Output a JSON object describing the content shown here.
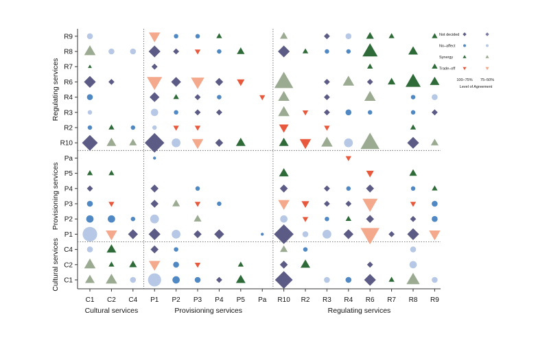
{
  "chart_data": {
    "type": "scatter",
    "x_categories": [
      "C1",
      "C2",
      "C4",
      "P1",
      "P2",
      "P3",
      "P4",
      "P5",
      "Pa",
      "R10",
      "R2",
      "R3",
      "R4",
      "R6",
      "R7",
      "R8",
      "R9"
    ],
    "y_categories": [
      "C1",
      "C2",
      "C4",
      "P1",
      "P2",
      "P3",
      "P4",
      "P5",
      "Pa",
      "R10",
      "R2",
      "R3",
      "R4",
      "R6",
      "R7",
      "R8",
      "R9"
    ],
    "x_groups": [
      {
        "label": "Cultural services",
        "items": [
          "C1",
          "C2",
          "C4"
        ]
      },
      {
        "label": "Provisioning services",
        "items": [
          "P1",
          "P2",
          "P3",
          "P4",
          "P5",
          "Pa"
        ]
      },
      {
        "label": "Regulating services",
        "items": [
          "R10",
          "R2",
          "R3",
          "R4",
          "R6",
          "R7",
          "R8",
          "R9"
        ]
      }
    ],
    "y_groups": [
      {
        "label": "Cultural services",
        "items": [
          "C1",
          "C2",
          "C4"
        ]
      },
      {
        "label": "Provisioning services",
        "items": [
          "P1",
          "P2",
          "P3",
          "P4",
          "P5",
          "Pa"
        ]
      },
      {
        "label": "Regulating services",
        "items": [
          "R10",
          "R2",
          "R3",
          "R4",
          "R6",
          "R7",
          "R8",
          "R9"
        ]
      }
    ],
    "legend": {
      "title": "Level of Agreement",
      "levels": [
        "100–75%",
        "75–50%"
      ],
      "categories": [
        {
          "name": "Not decided",
          "code": "N",
          "shape": "diamond"
        },
        {
          "name": "No–affect",
          "code": "O",
          "shape": "circle"
        },
        {
          "name": "Synergy",
          "code": "S",
          "shape": "triangle-up"
        },
        {
          "name": "Trade–off",
          "code": "T",
          "shape": "triangle-down"
        }
      ]
    },
    "colors": {
      "N_high": "#5b5b86",
      "N_low": "#7a7aa3",
      "O_high": "#5088c4",
      "O_low": "#b6c8e6",
      "S_high": "#2e6b38",
      "S_low": "#9bab92",
      "T_high": "#e8583c",
      "T_low": "#f4a98c"
    },
    "size_scale": "marker size proportional to magnitude 1–5",
    "points": [
      [
        "C1",
        "R9",
        "O",
        0,
        2
      ],
      [
        "C1",
        "R8",
        "S",
        0,
        3
      ],
      [
        "C1",
        "R7",
        "S",
        1,
        1
      ],
      [
        "C1",
        "R6",
        "N",
        1,
        3
      ],
      [
        "C1",
        "R4",
        "O",
        1,
        2
      ],
      [
        "C1",
        "R3",
        "O",
        0,
        1.5
      ],
      [
        "C1",
        "R2",
        "O",
        1,
        1.5
      ],
      [
        "C1",
        "R10",
        "N",
        1,
        4
      ],
      [
        "C1",
        "P5",
        "S",
        1,
        1.5
      ],
      [
        "C1",
        "P4",
        "N",
        1,
        1.5
      ],
      [
        "C1",
        "P3",
        "O",
        1,
        2
      ],
      [
        "C1",
        "P2",
        "O",
        1,
        2.5
      ],
      [
        "C1",
        "P1",
        "O",
        0,
        5
      ],
      [
        "C1",
        "C4",
        "O",
        0,
        2
      ],
      [
        "C1",
        "C2",
        "S",
        0,
        3
      ],
      [
        "C1",
        "C1",
        "S",
        0,
        2.5
      ],
      [
        "C2",
        "R8",
        "O",
        0,
        2
      ],
      [
        "C2",
        "R6",
        "N",
        1,
        1.5
      ],
      [
        "C2",
        "R2",
        "S",
        1,
        1.5
      ],
      [
        "C2",
        "R10",
        "S",
        0,
        2.5
      ],
      [
        "C2",
        "P5",
        "S",
        1,
        1.5
      ],
      [
        "C2",
        "P3",
        "T",
        1,
        1.5
      ],
      [
        "C2",
        "P2",
        "O",
        1,
        2.5
      ],
      [
        "C2",
        "P1",
        "T",
        0,
        3
      ],
      [
        "C2",
        "C4",
        "S",
        1,
        2.5
      ],
      [
        "C2",
        "C2",
        "S",
        1,
        1.5
      ],
      [
        "C2",
        "C1",
        "S",
        0,
        3
      ],
      [
        "C4",
        "R8",
        "O",
        0,
        2
      ],
      [
        "C4",
        "R2",
        "O",
        1,
        1.5
      ],
      [
        "C4",
        "R10",
        "S",
        0,
        2
      ],
      [
        "C4",
        "P2",
        "O",
        1,
        1.5
      ],
      [
        "C4",
        "P1",
        "N",
        1,
        2.5
      ],
      [
        "C4",
        "C2",
        "S",
        1,
        2
      ],
      [
        "C4",
        "C1",
        "O",
        0,
        2
      ],
      [
        "P1",
        "R9",
        "T",
        0,
        3
      ],
      [
        "P1",
        "R8",
        "N",
        1,
        3
      ],
      [
        "P1",
        "R7",
        "N",
        1,
        1.5
      ],
      [
        "P1",
        "R6",
        "T",
        0,
        4
      ],
      [
        "P1",
        "R4",
        "N",
        1,
        2.5
      ],
      [
        "P1",
        "R3",
        "O",
        0,
        2.5
      ],
      [
        "P1",
        "R2",
        "O",
        0,
        1.5
      ],
      [
        "P1",
        "R10",
        "N",
        1,
        5
      ],
      [
        "P1",
        "Pa",
        "O",
        1,
        1
      ],
      [
        "P1",
        "P4",
        "N",
        1,
        2
      ],
      [
        "P1",
        "P3",
        "N",
        1,
        2
      ],
      [
        "P1",
        "P2",
        "O",
        0,
        3
      ],
      [
        "P1",
        "P1",
        "N",
        1,
        3
      ],
      [
        "P1",
        "C4",
        "N",
        1,
        2
      ],
      [
        "P1",
        "C2",
        "T",
        0,
        3
      ],
      [
        "P1",
        "C1",
        "O",
        0,
        4.5
      ],
      [
        "P2",
        "R9",
        "O",
        1,
        1.5
      ],
      [
        "P2",
        "R8",
        "N",
        1,
        1.5
      ],
      [
        "P2",
        "R6",
        "N",
        1,
        2.5
      ],
      [
        "P2",
        "R4",
        "S",
        1,
        1.5
      ],
      [
        "P2",
        "R3",
        "O",
        1,
        1.5
      ],
      [
        "P2",
        "R2",
        "T",
        1,
        1.5
      ],
      [
        "P2",
        "R10",
        "O",
        0,
        3
      ],
      [
        "P2",
        "P3",
        "S",
        0,
        2
      ],
      [
        "P2",
        "P1",
        "O",
        0,
        3
      ],
      [
        "P2",
        "C4",
        "O",
        1,
        1.5
      ],
      [
        "P2",
        "C2",
        "O",
        1,
        2
      ],
      [
        "P2",
        "C1",
        "O",
        1,
        2.5
      ],
      [
        "P3",
        "R9",
        "O",
        1,
        1.5
      ],
      [
        "P3",
        "R8",
        "T",
        1,
        1.5
      ],
      [
        "P3",
        "R6",
        "T",
        0,
        3.5
      ],
      [
        "P3",
        "R4",
        "N",
        1,
        1.5
      ],
      [
        "P3",
        "R3",
        "N",
        1,
        1.5
      ],
      [
        "P3",
        "R2",
        "T",
        1,
        1.5
      ],
      [
        "P3",
        "R10",
        "T",
        0,
        3
      ],
      [
        "P3",
        "P4",
        "O",
        1,
        1.5
      ],
      [
        "P3",
        "P3",
        "T",
        1,
        1.5
      ],
      [
        "P3",
        "P2",
        "S",
        0,
        2
      ],
      [
        "P3",
        "P1",
        "N",
        1,
        2
      ],
      [
        "P3",
        "C2",
        "T",
        1,
        1.5
      ],
      [
        "P3",
        "C1",
        "O",
        1,
        2
      ],
      [
        "P4",
        "R9",
        "S",
        1,
        1.5
      ],
      [
        "P4",
        "R8",
        "O",
        1,
        1.5
      ],
      [
        "P4",
        "R6",
        "N",
        1,
        2
      ],
      [
        "P4",
        "R4",
        "O",
        1,
        1.5
      ],
      [
        "P4",
        "R3",
        "N",
        1,
        1.5
      ],
      [
        "P4",
        "R10",
        "N",
        1,
        2
      ],
      [
        "P4",
        "P3",
        "O",
        1,
        1.5
      ],
      [
        "P4",
        "P1",
        "N",
        1,
        2.5
      ],
      [
        "P4",
        "C1",
        "N",
        1,
        1.5
      ],
      [
        "P5",
        "R8",
        "S",
        1,
        2
      ],
      [
        "P5",
        "R6",
        "T",
        1,
        2
      ],
      [
        "P5",
        "R10",
        "S",
        1,
        2.5
      ],
      [
        "P5",
        "C2",
        "S",
        1,
        1.5
      ],
      [
        "P5",
        "C1",
        "S",
        1,
        2.5
      ],
      [
        "Pa",
        "R4",
        "T",
        1,
        1.5
      ],
      [
        "Pa",
        "P1",
        "O",
        1,
        1
      ],
      [
        "R10",
        "R9",
        "S",
        0,
        2
      ],
      [
        "R10",
        "R8",
        "N",
        1,
        3
      ],
      [
        "R10",
        "R6",
        "S",
        0,
        5
      ],
      [
        "R10",
        "R4",
        "S",
        0,
        3
      ],
      [
        "R10",
        "R3",
        "S",
        0,
        3
      ],
      [
        "R10",
        "R2",
        "T",
        1,
        2.5
      ],
      [
        "R10",
        "R10",
        "S",
        1,
        2.5
      ],
      [
        "R10",
        "P5",
        "S",
        1,
        2.5
      ],
      [
        "R10",
        "P4",
        "N",
        1,
        2
      ],
      [
        "R10",
        "P3",
        "T",
        0,
        3
      ],
      [
        "R10",
        "P2",
        "O",
        0,
        2.5
      ],
      [
        "R10",
        "P1",
        "N",
        1,
        5
      ],
      [
        "R10",
        "C4",
        "S",
        0,
        2
      ],
      [
        "R10",
        "C2",
        "N",
        1,
        2
      ],
      [
        "R10",
        "C1",
        "N",
        1,
        4.5
      ],
      [
        "R2",
        "R8",
        "S",
        1,
        1.5
      ],
      [
        "R2",
        "R3",
        "T",
        1,
        1.5
      ],
      [
        "R2",
        "R10",
        "T",
        1,
        3
      ],
      [
        "R2",
        "P3",
        "T",
        1,
        2
      ],
      [
        "R2",
        "P2",
        "T",
        1,
        1.5
      ],
      [
        "R2",
        "P1",
        "O",
        0,
        2
      ],
      [
        "R2",
        "C4",
        "O",
        1,
        1.5
      ],
      [
        "R2",
        "C2",
        "S",
        1,
        2.5
      ],
      [
        "R3",
        "R9",
        "N",
        1,
        1.5
      ],
      [
        "R3",
        "R8",
        "O",
        1,
        1.5
      ],
      [
        "R3",
        "R6",
        "N",
        1,
        1.5
      ],
      [
        "R3",
        "R4",
        "N",
        1,
        1.5
      ],
      [
        "R3",
        "R3",
        "N",
        1,
        1.5
      ],
      [
        "R3",
        "R2",
        "T",
        1,
        1.5
      ],
      [
        "R3",
        "R10",
        "S",
        0,
        3
      ],
      [
        "R3",
        "P4",
        "N",
        1,
        1.5
      ],
      [
        "R3",
        "P3",
        "N",
        1,
        1.5
      ],
      [
        "R3",
        "P2",
        "O",
        1,
        1.5
      ],
      [
        "R3",
        "P1",
        "O",
        0,
        3
      ],
      [
        "R3",
        "C1",
        "O",
        0,
        2
      ],
      [
        "R4",
        "R9",
        "O",
        0,
        2
      ],
      [
        "R4",
        "R8",
        "O",
        1,
        1.5
      ],
      [
        "R4",
        "R6",
        "S",
        0,
        3
      ],
      [
        "R4",
        "R3",
        "O",
        1,
        2
      ],
      [
        "R4",
        "R10",
        "O",
        0,
        3
      ],
      [
        "R4",
        "Pa",
        "T",
        1,
        1.5
      ],
      [
        "R4",
        "P4",
        "O",
        1,
        1.5
      ],
      [
        "R4",
        "P3",
        "N",
        1,
        1.5
      ],
      [
        "R4",
        "P2",
        "S",
        1,
        1.5
      ],
      [
        "R4",
        "P1",
        "N",
        1,
        2.5
      ],
      [
        "R4",
        "C1",
        "O",
        1,
        2
      ],
      [
        "R6",
        "R9",
        "S",
        1,
        2
      ],
      [
        "R6",
        "R8",
        "S",
        1,
        4
      ],
      [
        "R6",
        "R7",
        "S",
        1,
        1.5
      ],
      [
        "R6",
        "R6",
        "N",
        1,
        1.5
      ],
      [
        "R6",
        "R4",
        "S",
        0,
        3
      ],
      [
        "R6",
        "R3",
        "O",
        1,
        1.5
      ],
      [
        "R6",
        "R10",
        "S",
        0,
        5
      ],
      [
        "R6",
        "P5",
        "T",
        1,
        2
      ],
      [
        "R6",
        "P4",
        "N",
        1,
        2
      ],
      [
        "R6",
        "P3",
        "T",
        0,
        4
      ],
      [
        "R6",
        "P2",
        "N",
        1,
        2
      ],
      [
        "R6",
        "P1",
        "T",
        0,
        5
      ],
      [
        "R6",
        "C2",
        "N",
        1,
        1.5
      ],
      [
        "R6",
        "C1",
        "N",
        1,
        3
      ],
      [
        "R7",
        "R9",
        "S",
        1,
        1.5
      ],
      [
        "R7",
        "R6",
        "S",
        1,
        2
      ],
      [
        "R7",
        "P1",
        "N",
        1,
        1.5
      ],
      [
        "R7",
        "C1",
        "S",
        1,
        1.5
      ],
      [
        "R8",
        "R8",
        "S",
        1,
        2.5
      ],
      [
        "R8",
        "R6",
        "S",
        1,
        4
      ],
      [
        "R8",
        "R4",
        "O",
        1,
        1.5
      ],
      [
        "R8",
        "R3",
        "O",
        1,
        1.5
      ],
      [
        "R8",
        "R2",
        "S",
        1,
        1.5
      ],
      [
        "R8",
        "R10",
        "N",
        1,
        3
      ],
      [
        "R8",
        "P5",
        "S",
        1,
        2
      ],
      [
        "R8",
        "P4",
        "O",
        1,
        1.5
      ],
      [
        "R8",
        "P3",
        "T",
        1,
        1.5
      ],
      [
        "R8",
        "P2",
        "N",
        1,
        1.5
      ],
      [
        "R8",
        "P1",
        "N",
        1,
        3
      ],
      [
        "R8",
        "C4",
        "O",
        0,
        2
      ],
      [
        "R8",
        "C2",
        "O",
        0,
        2.5
      ],
      [
        "R8",
        "C1",
        "S",
        0,
        3.5
      ],
      [
        "R9",
        "R9",
        "S",
        1,
        1.5
      ],
      [
        "R9",
        "R7",
        "S",
        1,
        1.5
      ],
      [
        "R9",
        "R6",
        "S",
        1,
        2.5
      ],
      [
        "R9",
        "R4",
        "O",
        0,
        2
      ],
      [
        "R9",
        "R3",
        "N",
        1,
        1.5
      ],
      [
        "R9",
        "R10",
        "S",
        0,
        2
      ],
      [
        "R9",
        "P4",
        "S",
        1,
        1.5
      ],
      [
        "R9",
        "P3",
        "O",
        1,
        2
      ],
      [
        "R9",
        "P2",
        "O",
        1,
        2
      ],
      [
        "R9",
        "P1",
        "T",
        0,
        3
      ],
      [
        "R9",
        "C1",
        "O",
        0,
        2
      ]
    ]
  }
}
